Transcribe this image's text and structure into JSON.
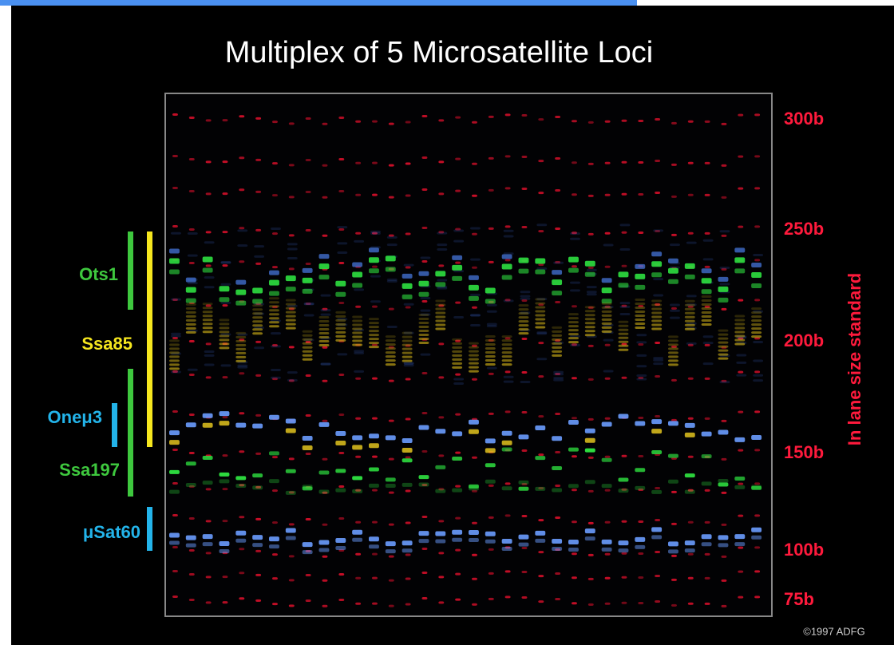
{
  "title": "Multiplex of 5 Microsatellite Loci",
  "loci": [
    "Ots1",
    "Ssa85",
    "Oneμ3",
    "Ssa197",
    "μSat60"
  ],
  "size_standard": {
    "label": "In lane size standard",
    "markers": [
      "300b",
      "250b",
      "200b",
      "150b",
      "100b",
      "75b"
    ]
  },
  "credit": "©1997 ADFG"
}
